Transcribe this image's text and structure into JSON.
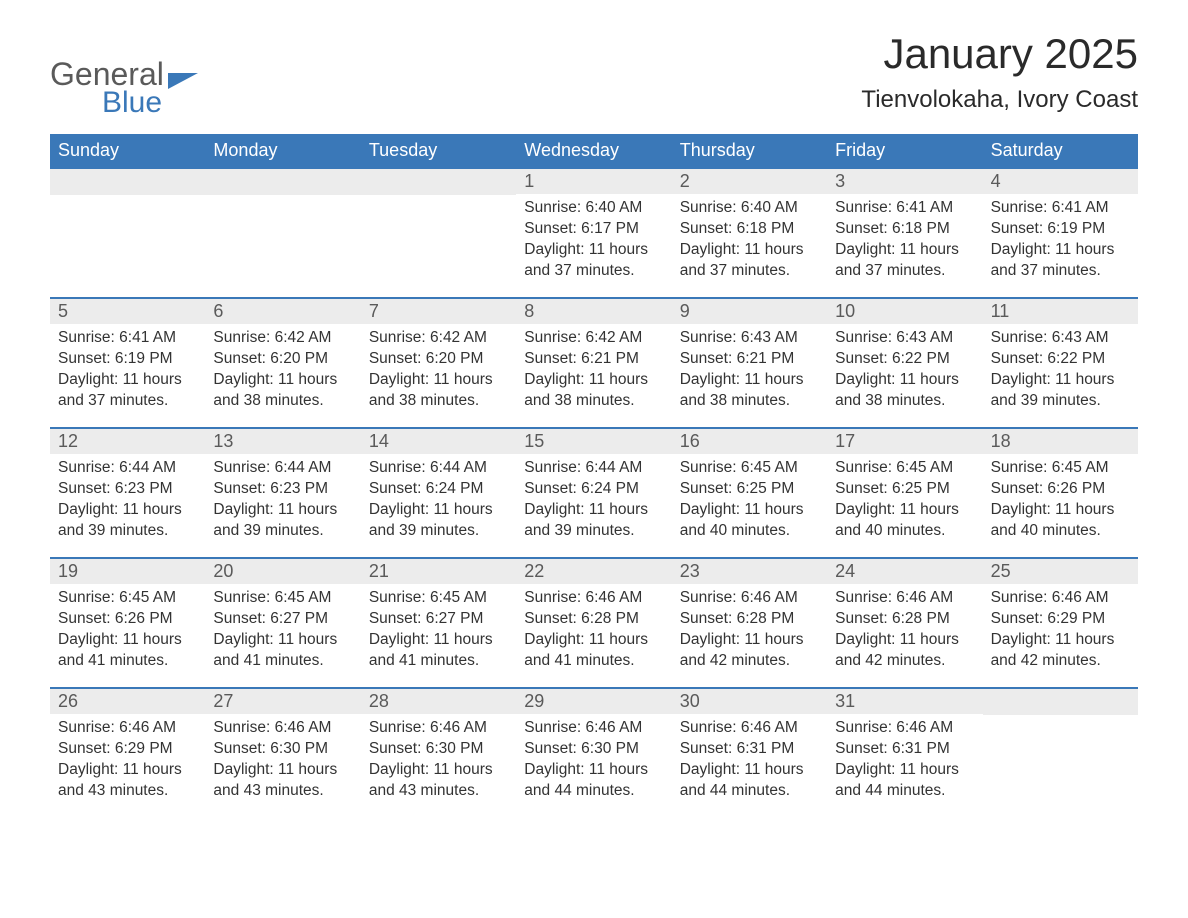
{
  "logo": {
    "line1": "General",
    "line2": "Blue"
  },
  "title": "January 2025",
  "location": "Tienvolokaha, Ivory Coast",
  "colors": {
    "header_bg": "#3a78b8",
    "header_text": "#ffffff",
    "daynum_bg": "#ececec",
    "daynum_text": "#5a5a5a",
    "body_text": "#333333",
    "rule": "#3a78b8"
  },
  "days_of_week": [
    "Sunday",
    "Monday",
    "Tuesday",
    "Wednesday",
    "Thursday",
    "Friday",
    "Saturday"
  ],
  "weeks": [
    [
      {
        "day": "",
        "sunrise": "",
        "sunset": "",
        "daylight": ""
      },
      {
        "day": "",
        "sunrise": "",
        "sunset": "",
        "daylight": ""
      },
      {
        "day": "",
        "sunrise": "",
        "sunset": "",
        "daylight": ""
      },
      {
        "day": "1",
        "sunrise": "Sunrise: 6:40 AM",
        "sunset": "Sunset: 6:17 PM",
        "daylight": "Daylight: 11 hours and 37 minutes."
      },
      {
        "day": "2",
        "sunrise": "Sunrise: 6:40 AM",
        "sunset": "Sunset: 6:18 PM",
        "daylight": "Daylight: 11 hours and 37 minutes."
      },
      {
        "day": "3",
        "sunrise": "Sunrise: 6:41 AM",
        "sunset": "Sunset: 6:18 PM",
        "daylight": "Daylight: 11 hours and 37 minutes."
      },
      {
        "day": "4",
        "sunrise": "Sunrise: 6:41 AM",
        "sunset": "Sunset: 6:19 PM",
        "daylight": "Daylight: 11 hours and 37 minutes."
      }
    ],
    [
      {
        "day": "5",
        "sunrise": "Sunrise: 6:41 AM",
        "sunset": "Sunset: 6:19 PM",
        "daylight": "Daylight: 11 hours and 37 minutes."
      },
      {
        "day": "6",
        "sunrise": "Sunrise: 6:42 AM",
        "sunset": "Sunset: 6:20 PM",
        "daylight": "Daylight: 11 hours and 38 minutes."
      },
      {
        "day": "7",
        "sunrise": "Sunrise: 6:42 AM",
        "sunset": "Sunset: 6:20 PM",
        "daylight": "Daylight: 11 hours and 38 minutes."
      },
      {
        "day": "8",
        "sunrise": "Sunrise: 6:42 AM",
        "sunset": "Sunset: 6:21 PM",
        "daylight": "Daylight: 11 hours and 38 minutes."
      },
      {
        "day": "9",
        "sunrise": "Sunrise: 6:43 AM",
        "sunset": "Sunset: 6:21 PM",
        "daylight": "Daylight: 11 hours and 38 minutes."
      },
      {
        "day": "10",
        "sunrise": "Sunrise: 6:43 AM",
        "sunset": "Sunset: 6:22 PM",
        "daylight": "Daylight: 11 hours and 38 minutes."
      },
      {
        "day": "11",
        "sunrise": "Sunrise: 6:43 AM",
        "sunset": "Sunset: 6:22 PM",
        "daylight": "Daylight: 11 hours and 39 minutes."
      }
    ],
    [
      {
        "day": "12",
        "sunrise": "Sunrise: 6:44 AM",
        "sunset": "Sunset: 6:23 PM",
        "daylight": "Daylight: 11 hours and 39 minutes."
      },
      {
        "day": "13",
        "sunrise": "Sunrise: 6:44 AM",
        "sunset": "Sunset: 6:23 PM",
        "daylight": "Daylight: 11 hours and 39 minutes."
      },
      {
        "day": "14",
        "sunrise": "Sunrise: 6:44 AM",
        "sunset": "Sunset: 6:24 PM",
        "daylight": "Daylight: 11 hours and 39 minutes."
      },
      {
        "day": "15",
        "sunrise": "Sunrise: 6:44 AM",
        "sunset": "Sunset: 6:24 PM",
        "daylight": "Daylight: 11 hours and 39 minutes."
      },
      {
        "day": "16",
        "sunrise": "Sunrise: 6:45 AM",
        "sunset": "Sunset: 6:25 PM",
        "daylight": "Daylight: 11 hours and 40 minutes."
      },
      {
        "day": "17",
        "sunrise": "Sunrise: 6:45 AM",
        "sunset": "Sunset: 6:25 PM",
        "daylight": "Daylight: 11 hours and 40 minutes."
      },
      {
        "day": "18",
        "sunrise": "Sunrise: 6:45 AM",
        "sunset": "Sunset: 6:26 PM",
        "daylight": "Daylight: 11 hours and 40 minutes."
      }
    ],
    [
      {
        "day": "19",
        "sunrise": "Sunrise: 6:45 AM",
        "sunset": "Sunset: 6:26 PM",
        "daylight": "Daylight: 11 hours and 41 minutes."
      },
      {
        "day": "20",
        "sunrise": "Sunrise: 6:45 AM",
        "sunset": "Sunset: 6:27 PM",
        "daylight": "Daylight: 11 hours and 41 minutes."
      },
      {
        "day": "21",
        "sunrise": "Sunrise: 6:45 AM",
        "sunset": "Sunset: 6:27 PM",
        "daylight": "Daylight: 11 hours and 41 minutes."
      },
      {
        "day": "22",
        "sunrise": "Sunrise: 6:46 AM",
        "sunset": "Sunset: 6:28 PM",
        "daylight": "Daylight: 11 hours and 41 minutes."
      },
      {
        "day": "23",
        "sunrise": "Sunrise: 6:46 AM",
        "sunset": "Sunset: 6:28 PM",
        "daylight": "Daylight: 11 hours and 42 minutes."
      },
      {
        "day": "24",
        "sunrise": "Sunrise: 6:46 AM",
        "sunset": "Sunset: 6:28 PM",
        "daylight": "Daylight: 11 hours and 42 minutes."
      },
      {
        "day": "25",
        "sunrise": "Sunrise: 6:46 AM",
        "sunset": "Sunset: 6:29 PM",
        "daylight": "Daylight: 11 hours and 42 minutes."
      }
    ],
    [
      {
        "day": "26",
        "sunrise": "Sunrise: 6:46 AM",
        "sunset": "Sunset: 6:29 PM",
        "daylight": "Daylight: 11 hours and 43 minutes."
      },
      {
        "day": "27",
        "sunrise": "Sunrise: 6:46 AM",
        "sunset": "Sunset: 6:30 PM",
        "daylight": "Daylight: 11 hours and 43 minutes."
      },
      {
        "day": "28",
        "sunrise": "Sunrise: 6:46 AM",
        "sunset": "Sunset: 6:30 PM",
        "daylight": "Daylight: 11 hours and 43 minutes."
      },
      {
        "day": "29",
        "sunrise": "Sunrise: 6:46 AM",
        "sunset": "Sunset: 6:30 PM",
        "daylight": "Daylight: 11 hours and 44 minutes."
      },
      {
        "day": "30",
        "sunrise": "Sunrise: 6:46 AM",
        "sunset": "Sunset: 6:31 PM",
        "daylight": "Daylight: 11 hours and 44 minutes."
      },
      {
        "day": "31",
        "sunrise": "Sunrise: 6:46 AM",
        "sunset": "Sunset: 6:31 PM",
        "daylight": "Daylight: 11 hours and 44 minutes."
      },
      {
        "day": "",
        "sunrise": "",
        "sunset": "",
        "daylight": ""
      }
    ]
  ]
}
